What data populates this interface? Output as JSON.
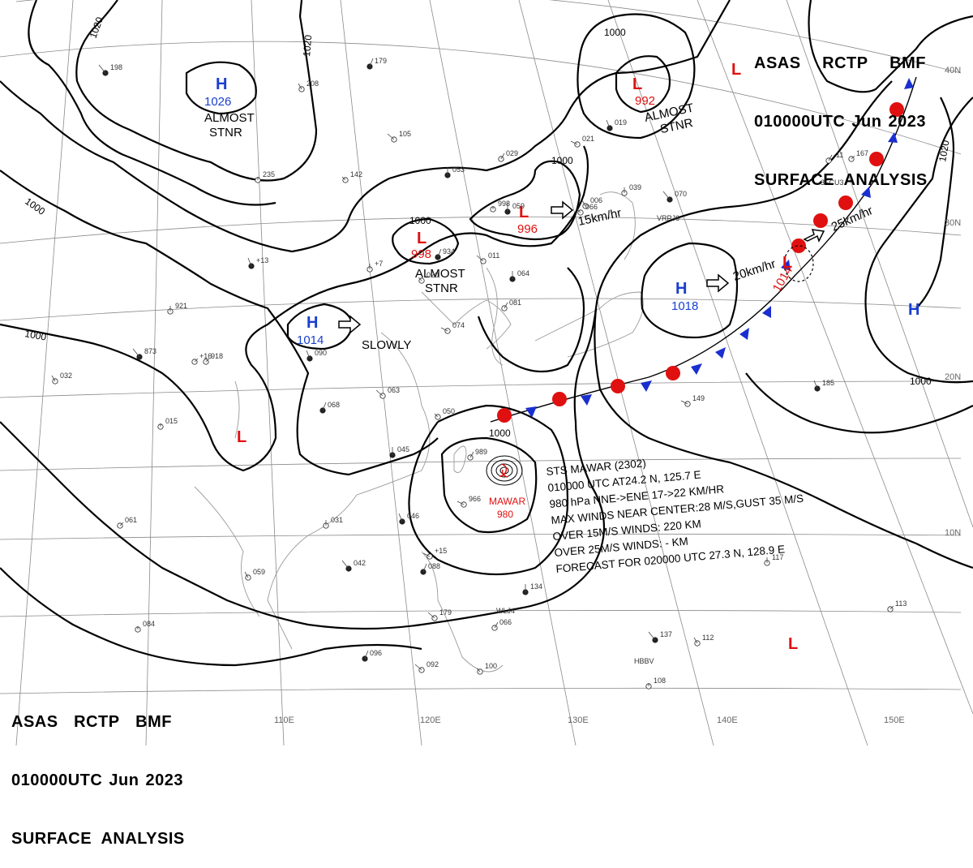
{
  "header_top": {
    "line1": [
      "ASAS",
      "RCTP",
      "BMF"
    ],
    "line2": [
      "010000UTC",
      "Jun",
      "2023"
    ],
    "line3": "SURFACE  ANALYSIS"
  },
  "header_bottom": {
    "line1": [
      "ASAS",
      "RCTP",
      "BMF"
    ],
    "line2": [
      "010000UTC",
      "Jun",
      "2023"
    ],
    "line3": "SURFACE  ANALYSIS"
  },
  "longitude_labels": [
    "110E",
    "120E",
    "130E",
    "140E",
    "150E"
  ],
  "latitude_labels": [
    "40N",
    "30N",
    "20N",
    "10N"
  ],
  "isobar_labels": [
    "1020",
    "1020",
    "1000",
    "1000",
    "1000",
    "1000",
    "1000",
    "1000",
    "1000",
    "1020",
    "1020",
    "1000"
  ],
  "pressure_systems": [
    {
      "type": "H",
      "value": "1026",
      "note": "ALMOST\nSTNR"
    },
    {
      "type": "L",
      "value": "992",
      "note": "ALMOST\nSTNR"
    },
    {
      "type": "L",
      "value": "996",
      "motion": "15km/hr"
    },
    {
      "type": "L",
      "value": "998",
      "note": "ALMOST\nSTNR"
    },
    {
      "type": "H",
      "value": "1014",
      "motion": "SLOWLY"
    },
    {
      "type": "H",
      "value": "1018",
      "motion": "20km/hr"
    },
    {
      "type": "L",
      "value": "1014",
      "motion": "25km/hr"
    },
    {
      "type": "H",
      "value": ""
    },
    {
      "type": "L",
      "value": ""
    },
    {
      "type": "L",
      "value": ""
    },
    {
      "type": "L",
      "value": ""
    }
  ],
  "storm": {
    "name": "MAWAR",
    "pressure": "980",
    "info": [
      "STS  MAWAR  (2302)",
      "010000  UTC  AT24.2 N, 125.7 E",
      "980 hPa  NNE->ENE  17->22 KM/HR",
      "MAX WINDS NEAR CENTER:28 M/S,GUST 35 M/S",
      "OVER 15M/S WINDS: 220 KM",
      "OVER 25M/S WINDS: - KM",
      "FORECAST FOR 020000 UTC 27.3 N, 128.9 E"
    ]
  },
  "station_samples": [
    "198",
    "208",
    "235",
    "179",
    "105",
    "142",
    "053",
    "029",
    "021",
    "019",
    "039",
    "167",
    "070",
    "006",
    "998",
    "934",
    "011",
    "020",
    "064",
    "081",
    "074",
    "090",
    "921",
    "918",
    "873",
    "032",
    "015",
    "068",
    "063",
    "050",
    "045",
    "989",
    "966",
    "046",
    "031",
    "061",
    "042",
    "059",
    "084",
    "096",
    "092",
    "100",
    "134",
    "066",
    "149",
    "185",
    "117",
    "113",
    "137",
    "112",
    "108",
    "088",
    "179",
    "066",
    "059",
    "-11",
    "+15",
    "+13",
    "+7",
    "+16"
  ],
  "station_ids": [
    "3FCU3",
    "VRPJ6",
    "HBBV",
    "WLJ4"
  ],
  "colors": {
    "high": "#1a3fd0",
    "low": "#e01010",
    "front_warm": "#e01010",
    "front_cold": "#1a2fd0",
    "line": "#000000",
    "grid": "#8a8a8a",
    "coast": "#9a9a9a"
  }
}
